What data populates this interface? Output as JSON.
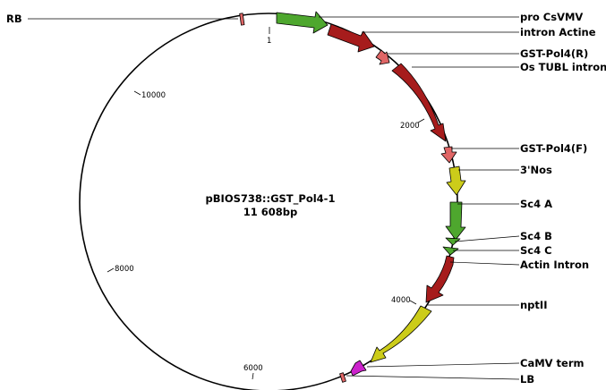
{
  "plasmid": {
    "name": "pBIOS738::GST_Pol4-1",
    "size_label": "11 608bp",
    "length_bp": 11608
  },
  "ticks": [
    {
      "label": "1"
    },
    {
      "label": "2000"
    },
    {
      "label": "4000"
    },
    {
      "label": "6000"
    },
    {
      "label": "8000"
    },
    {
      "label": "10000"
    }
  ],
  "features": [
    {
      "label": "RB",
      "kind": "marker",
      "color": "#e06666"
    },
    {
      "label": "pro CsVMV",
      "kind": "arrow",
      "color": "#4ea72e"
    },
    {
      "label": "intron Actine",
      "kind": "arrow",
      "color": "#a61c1c"
    },
    {
      "label": "GST-Pol4(R)",
      "kind": "arrow",
      "color": "#e06666"
    },
    {
      "label": "Os TUBL intron",
      "kind": "arrow",
      "color": "#a61c1c"
    },
    {
      "label": "GST-Pol4(F)",
      "kind": "arrow",
      "color": "#e06666"
    },
    {
      "label": "3'Nos",
      "kind": "arrow",
      "color": "#cccc1a"
    },
    {
      "label": "Sc4 A",
      "kind": "arrow",
      "color": "#4ea72e"
    },
    {
      "label": "Sc4 B",
      "kind": "arrow",
      "color": "#4ea72e"
    },
    {
      "label": "Sc4 C",
      "kind": "arrow",
      "color": "#4ea72e"
    },
    {
      "label": "Actin Intron",
      "kind": "arrow",
      "color": "#a61c1c"
    },
    {
      "label": "nptII",
      "kind": "arrow",
      "color": "#cccc1a"
    },
    {
      "label": "CaMV term",
      "kind": "arrow",
      "color": "#cc22cc"
    },
    {
      "label": "LB",
      "kind": "marker",
      "color": "#e06666"
    }
  ]
}
